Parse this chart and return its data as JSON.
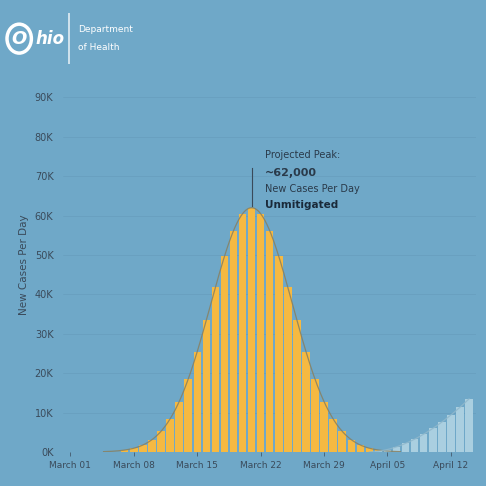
{
  "background_color": "#6fa8c8",
  "bar_color_orange": "#f5b942",
  "bar_color_blue": "#aacfe0",
  "curve_color": "#9a8a50",
  "yticks": [
    0,
    10000,
    20000,
    30000,
    40000,
    50000,
    60000,
    70000,
    80000,
    90000
  ],
  "ytick_labels": [
    "0K",
    "10K",
    "20K",
    "30K",
    "40K",
    "50K",
    "60K",
    "70K",
    "80K",
    "90K"
  ],
  "ylabel": "New Cases Per Day",
  "xtick_labels": [
    "March 01",
    "March 08",
    "March 15",
    "March 22",
    "March 29",
    "April 05",
    "April 12"
  ],
  "annotation_lines": [
    "Projected Peak:",
    "~62,000",
    "New Cases Per Day",
    "Unmitigated"
  ],
  "peak_value": 62000,
  "ohio_logo_color": "#2a5d8a",
  "tick_color": "#3a4a5a",
  "label_color": "#3a4a5a"
}
